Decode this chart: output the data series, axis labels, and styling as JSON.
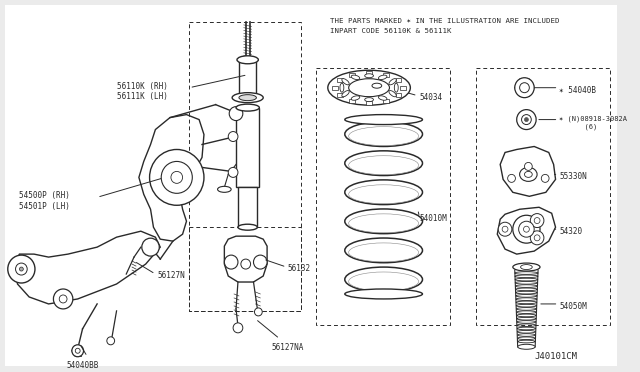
{
  "bg_color": "#f0f0f0",
  "title_text": "J40101CM",
  "header_line1": "THE PARTS MARKED ✶ IN THE ILLUSTRATION ARE INCLUDED",
  "header_line2": "INPART CODE 56110K & 56111K",
  "line_color": "#2a2a2a",
  "font_size": 5.5,
  "fig_w": 6.4,
  "fig_h": 3.72,
  "dpi": 100
}
